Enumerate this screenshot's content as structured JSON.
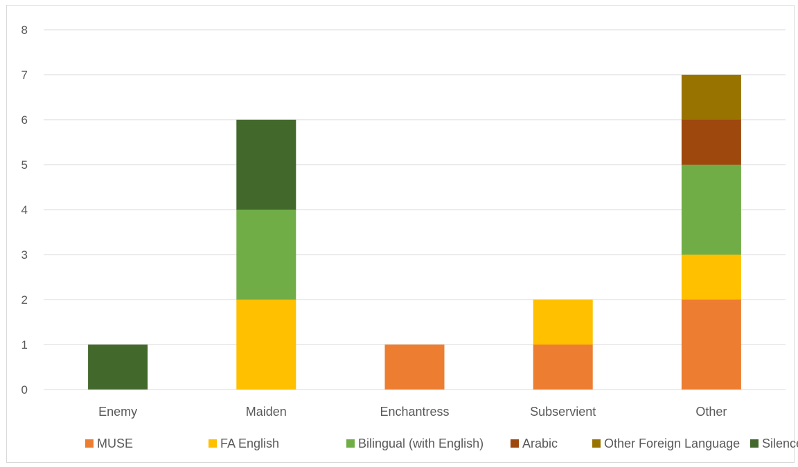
{
  "chart_data": {
    "type": "bar",
    "stacked": true,
    "title": "",
    "xlabel": "",
    "ylabel": "",
    "ylim": [
      0,
      8
    ],
    "y_ticks": [
      0,
      1,
      2,
      3,
      4,
      5,
      6,
      7,
      8
    ],
    "grid": true,
    "legend_position": "bottom",
    "categories": [
      "Enemy",
      "Maiden",
      "Enchantress",
      "Subservient",
      "Other"
    ],
    "series": [
      {
        "name": "MUSE",
        "color": "#ED7D31",
        "values": [
          0,
          0,
          1,
          1,
          2
        ]
      },
      {
        "name": "FA English",
        "color": "#FFC000",
        "values": [
          0,
          2,
          0,
          1,
          1
        ]
      },
      {
        "name": "Bilingual (with English)",
        "color": "#70AD47",
        "values": [
          0,
          2,
          0,
          0,
          2
        ]
      },
      {
        "name": "Arabic",
        "color": "#9E480E",
        "values": [
          0,
          0,
          0,
          0,
          1
        ]
      },
      {
        "name": "Other Foreign Language",
        "color": "#997300",
        "values": [
          0,
          0,
          0,
          0,
          1
        ]
      },
      {
        "name": "Silence",
        "color": "#43682B",
        "values": [
          1,
          2,
          0,
          0,
          0
        ]
      }
    ]
  }
}
